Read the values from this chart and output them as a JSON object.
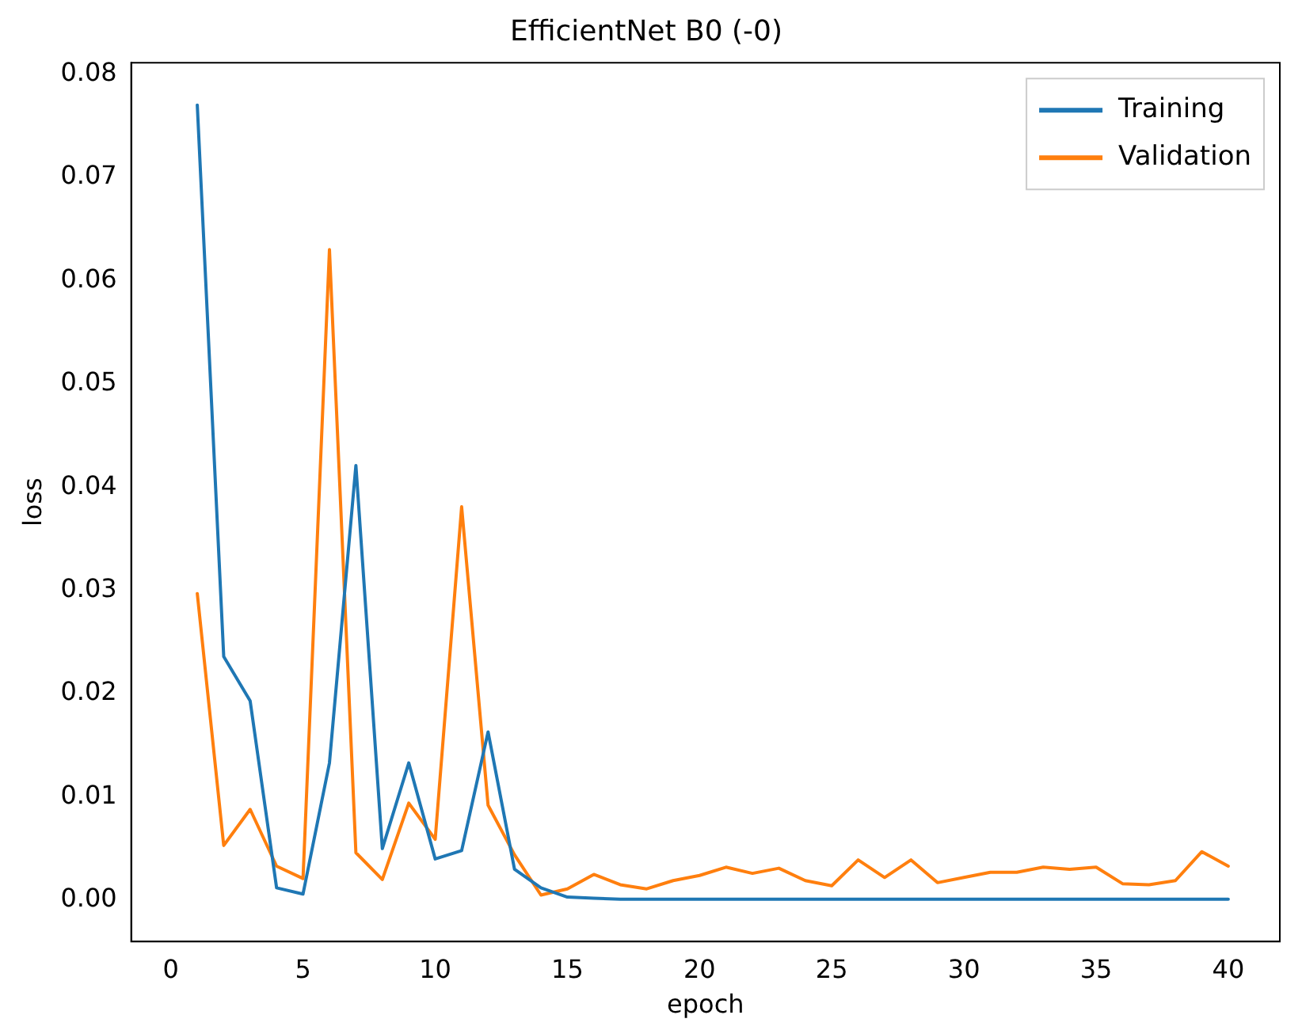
{
  "chart_data": {
    "type": "line",
    "title": "EfficientNet B0 (-0)",
    "xlabel": "epoch",
    "ylabel": "loss",
    "x": [
      1,
      2,
      3,
      4,
      5,
      6,
      7,
      8,
      9,
      10,
      11,
      12,
      13,
      14,
      15,
      16,
      17,
      18,
      19,
      20,
      21,
      22,
      23,
      24,
      25,
      26,
      27,
      28,
      29,
      30,
      31,
      32,
      33,
      34,
      35,
      36,
      37,
      38,
      39,
      40
    ],
    "series": [
      {
        "name": "Training",
        "color": "#1f77b4",
        "values": [
          0.077,
          0.0236,
          0.0193,
          0.0012,
          0.0006,
          0.0133,
          0.0421,
          0.005,
          0.0133,
          0.004,
          0.0048,
          0.0163,
          0.003,
          0.0012,
          0.0003,
          0.0002,
          0.0001,
          0.0001,
          0.0001,
          0.0001,
          0.0001,
          0.0001,
          0.0001,
          0.0001,
          0.0001,
          0.0001,
          0.0001,
          0.0001,
          0.0001,
          0.0001,
          0.0001,
          0.0001,
          0.0001,
          0.0001,
          0.0001,
          0.0001,
          0.0001,
          0.0001,
          0.0001,
          0.0001
        ]
      },
      {
        "name": "Validation",
        "color": "#ff7f0e",
        "values": [
          0.0297,
          0.0053,
          0.0088,
          0.0033,
          0.0021,
          0.063,
          0.0046,
          0.002,
          0.0094,
          0.0059,
          0.0381,
          0.0092,
          0.0044,
          0.0005,
          0.0011,
          0.0025,
          0.0015,
          0.0011,
          0.0019,
          0.0024,
          0.0032,
          0.0026,
          0.0031,
          0.0019,
          0.0014,
          0.0039,
          0.0022,
          0.0039,
          0.0017,
          0.0022,
          0.0027,
          0.0027,
          0.0032,
          0.003,
          0.0032,
          0.0016,
          0.0015,
          0.0019,
          0.0047,
          0.0033
        ]
      }
    ],
    "xlim": [
      -1.5,
      41.95
    ],
    "xticks": [
      0,
      5,
      10,
      15,
      20,
      25,
      30,
      35,
      40
    ],
    "ylim": [
      -0.004,
      0.0811
    ],
    "yticks": [
      {
        "value": 0,
        "label": "0.00"
      },
      {
        "value": 0.01,
        "label": "0.01"
      },
      {
        "value": 0.02,
        "label": "0.02"
      },
      {
        "value": 0.03,
        "label": "0.03"
      },
      {
        "value": 0.04,
        "label": "0.04"
      },
      {
        "value": 0.05,
        "label": "0.05"
      },
      {
        "value": 0.06,
        "label": "0.06"
      },
      {
        "value": 0.07,
        "label": "0.07"
      },
      {
        "value": 0.08,
        "label": "0.08"
      }
    ],
    "grid": false,
    "legend": "top right",
    "marker": "none",
    "line_style": "solid"
  }
}
